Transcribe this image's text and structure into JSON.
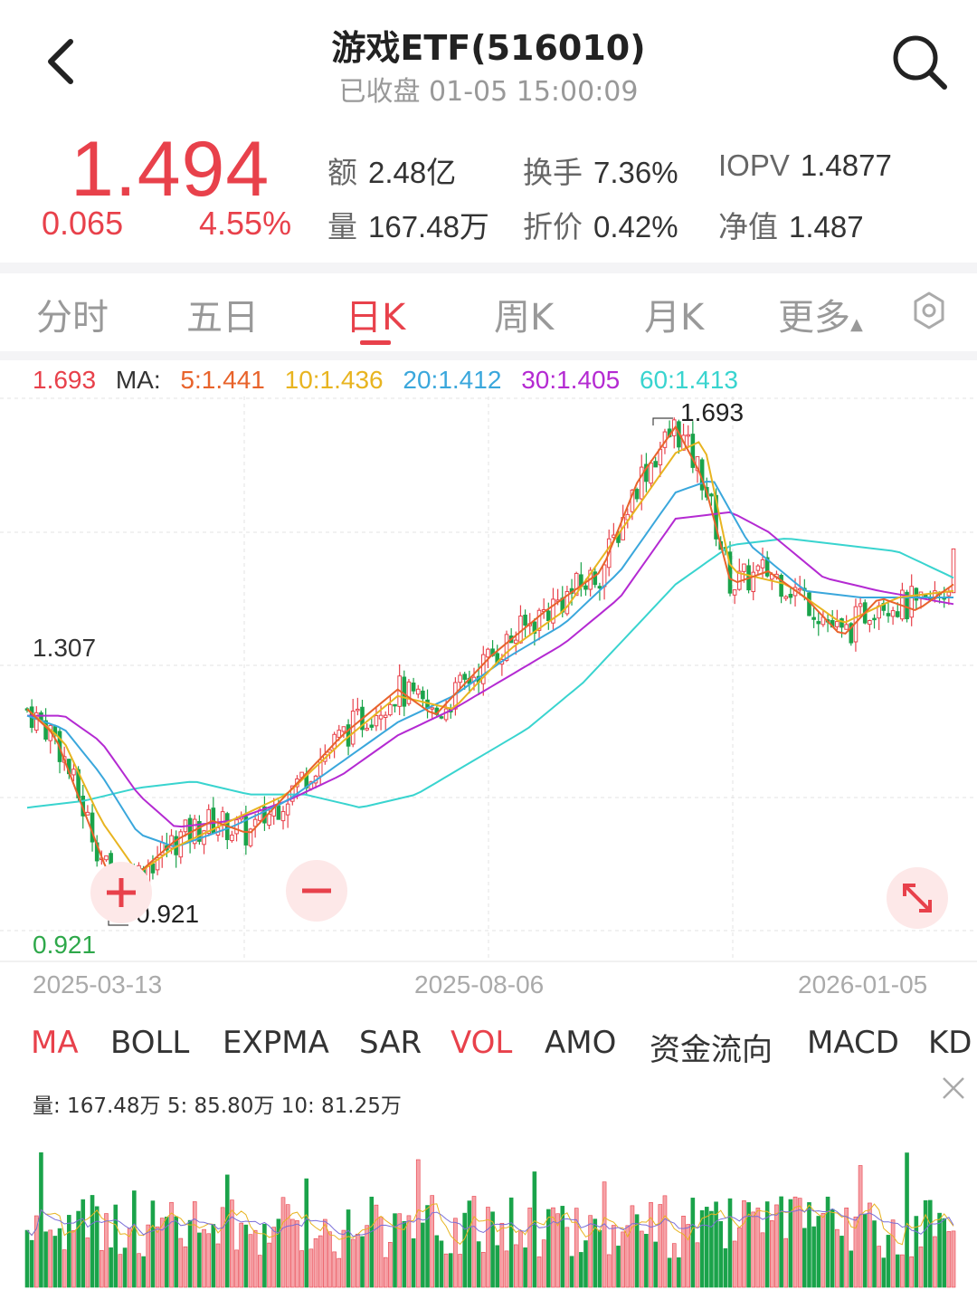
{
  "header": {
    "title": "游戏ETF(516010)",
    "status": "已收盘 01-05 15:00:09"
  },
  "quote": {
    "price": "1.494",
    "change": "0.065",
    "change_pct": "4.55%",
    "stats": [
      {
        "label": "额",
        "value": "2.48亿"
      },
      {
        "label": "换手",
        "value": "7.36%"
      },
      {
        "label": "IOPV",
        "value": "1.4877"
      },
      {
        "label": "量",
        "value": "167.48万"
      },
      {
        "label": "折价",
        "value": "0.42%"
      },
      {
        "label": "净值",
        "value": "1.487"
      }
    ],
    "up_color": "#e8414b"
  },
  "period_tabs": {
    "items": [
      "分时",
      "五日",
      "日K",
      "周K",
      "月K",
      "更多"
    ],
    "active": "日K"
  },
  "ma_legend": {
    "high": "1.693",
    "label": "MA:",
    "items": [
      {
        "text": "5:1.441",
        "color": "#e8632b"
      },
      {
        "text": "10:1.436",
        "color": "#e8b420"
      },
      {
        "text": "20:1.412",
        "color": "#3aa7dc"
      },
      {
        "text": "30:1.405",
        "color": "#b42ad2"
      },
      {
        "text": "60:1.413",
        "color": "#39d4cf"
      }
    ]
  },
  "chart_data": {
    "type": "candlestick",
    "y_axis_labels": [
      "1.307",
      "0.921"
    ],
    "x_axis_labels": [
      "2025-03-13",
      "2025-08-06",
      "2026-01-05"
    ],
    "max_label": "1.693",
    "min_label": "0.921",
    "ylim": [
      0.921,
      1.693
    ],
    "ma_series": [
      {
        "name": "MA60",
        "color": "#39d4cf",
        "points": [
          [
            0,
            1.1
          ],
          [
            0.06,
            1.11
          ],
          [
            0.12,
            1.13
          ],
          [
            0.18,
            1.14
          ],
          [
            0.24,
            1.12
          ],
          [
            0.3,
            1.12
          ],
          [
            0.36,
            1.1
          ],
          [
            0.42,
            1.12
          ],
          [
            0.48,
            1.17
          ],
          [
            0.54,
            1.22
          ],
          [
            0.6,
            1.29
          ],
          [
            0.66,
            1.38
          ],
          [
            0.7,
            1.44
          ],
          [
            0.76,
            1.5
          ],
          [
            0.82,
            1.51
          ],
          [
            0.88,
            1.5
          ],
          [
            0.94,
            1.49
          ],
          [
            1.0,
            1.45
          ]
        ]
      },
      {
        "name": "MA30",
        "color": "#b42ad2",
        "points": [
          [
            0,
            1.24
          ],
          [
            0.04,
            1.24
          ],
          [
            0.08,
            1.2
          ],
          [
            0.12,
            1.12
          ],
          [
            0.16,
            1.07
          ],
          [
            0.22,
            1.08
          ],
          [
            0.28,
            1.11
          ],
          [
            0.34,
            1.15
          ],
          [
            0.4,
            1.21
          ],
          [
            0.46,
            1.25
          ],
          [
            0.52,
            1.3
          ],
          [
            0.58,
            1.35
          ],
          [
            0.64,
            1.42
          ],
          [
            0.7,
            1.54
          ],
          [
            0.76,
            1.55
          ],
          [
            0.8,
            1.52
          ],
          [
            0.86,
            1.45
          ],
          [
            0.92,
            1.43
          ],
          [
            1.0,
            1.41
          ]
        ]
      },
      {
        "name": "MA20",
        "color": "#3aa7dc",
        "points": [
          [
            0,
            1.24
          ],
          [
            0.04,
            1.22
          ],
          [
            0.08,
            1.15
          ],
          [
            0.12,
            1.06
          ],
          [
            0.16,
            1.04
          ],
          [
            0.22,
            1.07
          ],
          [
            0.28,
            1.11
          ],
          [
            0.34,
            1.17
          ],
          [
            0.4,
            1.23
          ],
          [
            0.46,
            1.27
          ],
          [
            0.52,
            1.33
          ],
          [
            0.58,
            1.38
          ],
          [
            0.64,
            1.46
          ],
          [
            0.7,
            1.58
          ],
          [
            0.74,
            1.6
          ],
          [
            0.78,
            1.5
          ],
          [
            0.84,
            1.43
          ],
          [
            0.9,
            1.42
          ],
          [
            1.0,
            1.42
          ]
        ]
      },
      {
        "name": "MA10",
        "color": "#e8b420",
        "points": [
          [
            0,
            1.25
          ],
          [
            0.04,
            1.2
          ],
          [
            0.08,
            1.08
          ],
          [
            0.12,
            1.0
          ],
          [
            0.16,
            1.04
          ],
          [
            0.22,
            1.08
          ],
          [
            0.28,
            1.12
          ],
          [
            0.34,
            1.2
          ],
          [
            0.4,
            1.27
          ],
          [
            0.46,
            1.25
          ],
          [
            0.52,
            1.34
          ],
          [
            0.58,
            1.4
          ],
          [
            0.64,
            1.52
          ],
          [
            0.7,
            1.64
          ],
          [
            0.73,
            1.66
          ],
          [
            0.76,
            1.46
          ],
          [
            0.82,
            1.44
          ],
          [
            0.88,
            1.38
          ],
          [
            0.94,
            1.42
          ],
          [
            1.0,
            1.43
          ]
        ]
      },
      {
        "name": "MA5",
        "color": "#e8632b",
        "points": [
          [
            0,
            1.25
          ],
          [
            0.03,
            1.21
          ],
          [
            0.06,
            1.1
          ],
          [
            0.09,
            0.99
          ],
          [
            0.12,
            1.0
          ],
          [
            0.16,
            1.05
          ],
          [
            0.2,
            1.08
          ],
          [
            0.24,
            1.06
          ],
          [
            0.28,
            1.12
          ],
          [
            0.34,
            1.21
          ],
          [
            0.4,
            1.28
          ],
          [
            0.44,
            1.24
          ],
          [
            0.5,
            1.33
          ],
          [
            0.56,
            1.4
          ],
          [
            0.62,
            1.46
          ],
          [
            0.66,
            1.6
          ],
          [
            0.7,
            1.68
          ],
          [
            0.73,
            1.6
          ],
          [
            0.76,
            1.44
          ],
          [
            0.8,
            1.46
          ],
          [
            0.84,
            1.42
          ],
          [
            0.88,
            1.36
          ],
          [
            0.92,
            1.42
          ],
          [
            0.96,
            1.4
          ],
          [
            1.0,
            1.44
          ]
        ]
      }
    ]
  },
  "indicator_tabs": {
    "items": [
      "MA",
      "BOLL",
      "EXPMA",
      "SAR",
      "VOL",
      "AMO",
      "资金流向",
      "MACD",
      "KD"
    ],
    "active": [
      "MA",
      "VOL"
    ]
  },
  "volume": {
    "legend": "量: 167.48万  5: 85.80万  10: 81.25万"
  }
}
